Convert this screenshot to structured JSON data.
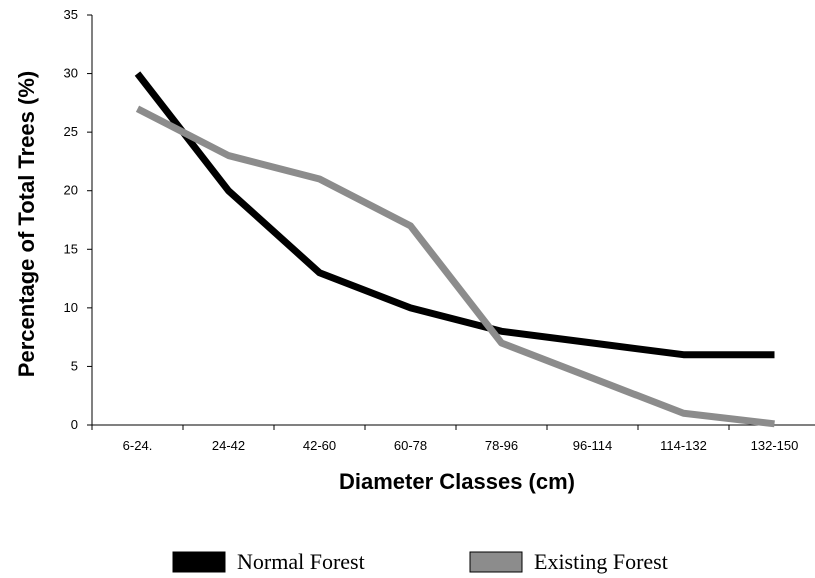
{
  "chart_data": {
    "type": "line",
    "categories": [
      "6-24.",
      "24-42",
      "42-60",
      "60-78",
      "78-96",
      "96-114",
      "114-132",
      "132-150"
    ],
    "series": [
      {
        "name": "Normal Forest",
        "color": "#000000",
        "values": [
          30,
          20,
          13,
          10,
          8,
          7,
          6,
          6
        ]
      },
      {
        "name": "Existing Forest",
        "color": "#8c8c8c",
        "values": [
          27,
          23,
          21,
          17,
          7,
          4,
          1,
          0.1
        ]
      }
    ],
    "xlabel": "Diameter Classes (cm)",
    "ylabel": "Percentage of Total Trees (%)",
    "ylim": [
      0,
      35
    ],
    "yticks": [
      0,
      5,
      10,
      15,
      20,
      25,
      30,
      35
    ],
    "grid": false,
    "legend_position": "bottom"
  }
}
